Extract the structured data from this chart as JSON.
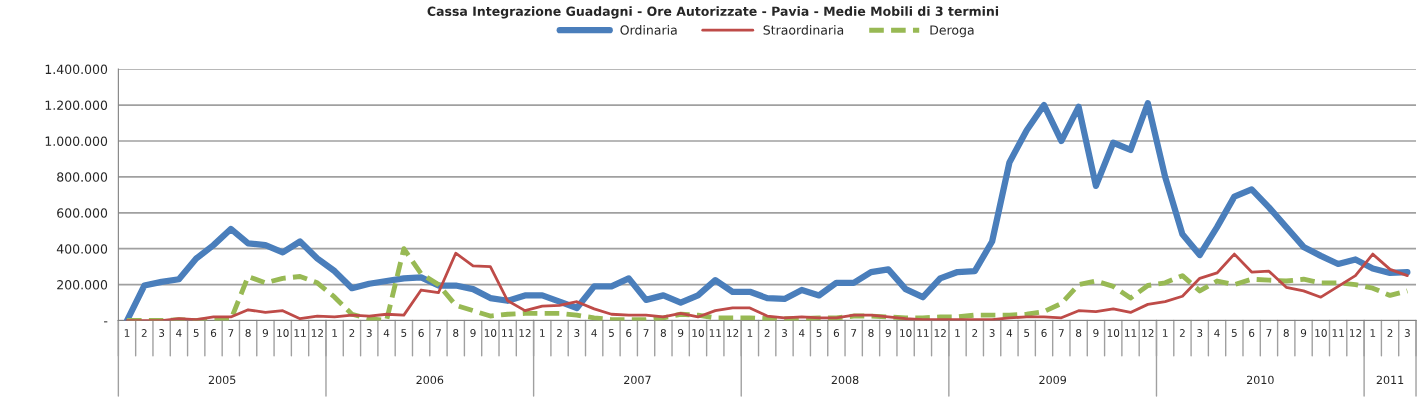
{
  "chart_data": {
    "type": "line",
    "title": "Cassa Integrazione Guadagni - Ore Autorizzate - Pavia - Medie Mobili di 3 termini",
    "categories": [
      "1",
      "2",
      "3",
      "4",
      "5",
      "6",
      "7",
      "8",
      "9",
      "10",
      "11",
      "12",
      "1",
      "2",
      "3",
      "4",
      "5",
      "6",
      "7",
      "8",
      "9",
      "10",
      "11",
      "12",
      "1",
      "2",
      "3",
      "4",
      "5",
      "6",
      "7",
      "8",
      "9",
      "10",
      "11",
      "12",
      "1",
      "2",
      "3",
      "4",
      "5",
      "6",
      "7",
      "8",
      "9",
      "10",
      "11",
      "12",
      "1",
      "2",
      "3",
      "4",
      "5",
      "6",
      "7",
      "8",
      "9",
      "10",
      "11",
      "12",
      "1",
      "2",
      "3",
      "4",
      "5",
      "6",
      "7",
      "8",
      "9",
      "10",
      "11",
      "12",
      "1",
      "2",
      "3"
    ],
    "annotations": [
      "2005",
      "2006",
      "2007",
      "2008",
      "2009",
      "2010",
      "2011"
    ],
    "series": [
      {
        "name": "Ordinaria",
        "color": "#4a7ebb",
        "line_style": "solid",
        "values": [
          0,
          195000,
          215000,
          230000,
          345000,
          420000,
          510000,
          430000,
          420000,
          380000,
          440000,
          345000,
          275000,
          180000,
          205000,
          220000,
          235000,
          240000,
          195000,
          195000,
          175000,
          125000,
          110000,
          140000,
          140000,
          105000,
          70000,
          190000,
          190000,
          235000,
          115000,
          140000,
          100000,
          140000,
          225000,
          160000,
          160000,
          125000,
          120000,
          170000,
          140000,
          210000,
          210000,
          270000,
          285000,
          175000,
          130000,
          235000,
          270000,
          275000,
          440000,
          880000,
          1060000,
          1200000,
          1000000,
          1190000,
          750000,
          990000,
          950000,
          1210000,
          800000,
          480000,
          365000,
          520000,
          690000,
          730000,
          630000,
          520000,
          410000,
          360000,
          315000,
          340000,
          290000,
          265000,
          270000
        ]
      },
      {
        "name": "Straordinaria",
        "color": "#be4b48",
        "line_style": "solid",
        "values": [
          0,
          0,
          0,
          10000,
          5000,
          20000,
          20000,
          60000,
          45000,
          55000,
          10000,
          25000,
          20000,
          30000,
          25000,
          35000,
          30000,
          170000,
          155000,
          375000,
          305000,
          300000,
          110000,
          55000,
          80000,
          85000,
          105000,
          65000,
          35000,
          30000,
          30000,
          20000,
          40000,
          20000,
          55000,
          70000,
          70000,
          25000,
          15000,
          20000,
          15000,
          15000,
          30000,
          30000,
          20000,
          10000,
          5000,
          5000,
          5000,
          5000,
          5000,
          15000,
          20000,
          20000,
          15000,
          55000,
          50000,
          65000,
          45000,
          90000,
          105000,
          135000,
          235000,
          265000,
          370000,
          270000,
          275000,
          185000,
          165000,
          130000,
          190000,
          250000,
          370000,
          285000,
          250000
        ]
      },
      {
        "name": "Deroga",
        "color": "#98b954",
        "line_style": "dashed",
        "values": [
          0,
          0,
          0,
          5000,
          0,
          5000,
          5000,
          245000,
          210000,
          235000,
          245000,
          210000,
          130000,
          35000,
          10000,
          0,
          400000,
          260000,
          200000,
          85000,
          55000,
          25000,
          35000,
          40000,
          40000,
          40000,
          30000,
          15000,
          5000,
          5000,
          5000,
          15000,
          35000,
          30000,
          15000,
          15000,
          15000,
          10000,
          10000,
          10000,
          15000,
          15000,
          25000,
          25000,
          20000,
          15000,
          15000,
          20000,
          20000,
          30000,
          30000,
          30000,
          35000,
          50000,
          95000,
          200000,
          220000,
          190000,
          125000,
          195000,
          210000,
          250000,
          165000,
          220000,
          200000,
          230000,
          225000,
          220000,
          230000,
          210000,
          210000,
          200000,
          180000,
          140000,
          165000
        ]
      }
    ],
    "ylim": [
      0,
      1400000
    ],
    "yticks": [
      {
        "value": 0,
        "label": "-"
      },
      {
        "value": 200000,
        "label": "200.000"
      },
      {
        "value": 400000,
        "label": "400.000"
      },
      {
        "value": 600000,
        "label": "600.000"
      },
      {
        "value": 800000,
        "label": "800.000"
      },
      {
        "value": 1000000,
        "label": "1.000.000"
      },
      {
        "value": 1200000,
        "label": "1.200.000"
      },
      {
        "value": 1400000,
        "label": "1.400.000"
      }
    ],
    "grid": "y",
    "legend": "top",
    "marker": "none"
  }
}
